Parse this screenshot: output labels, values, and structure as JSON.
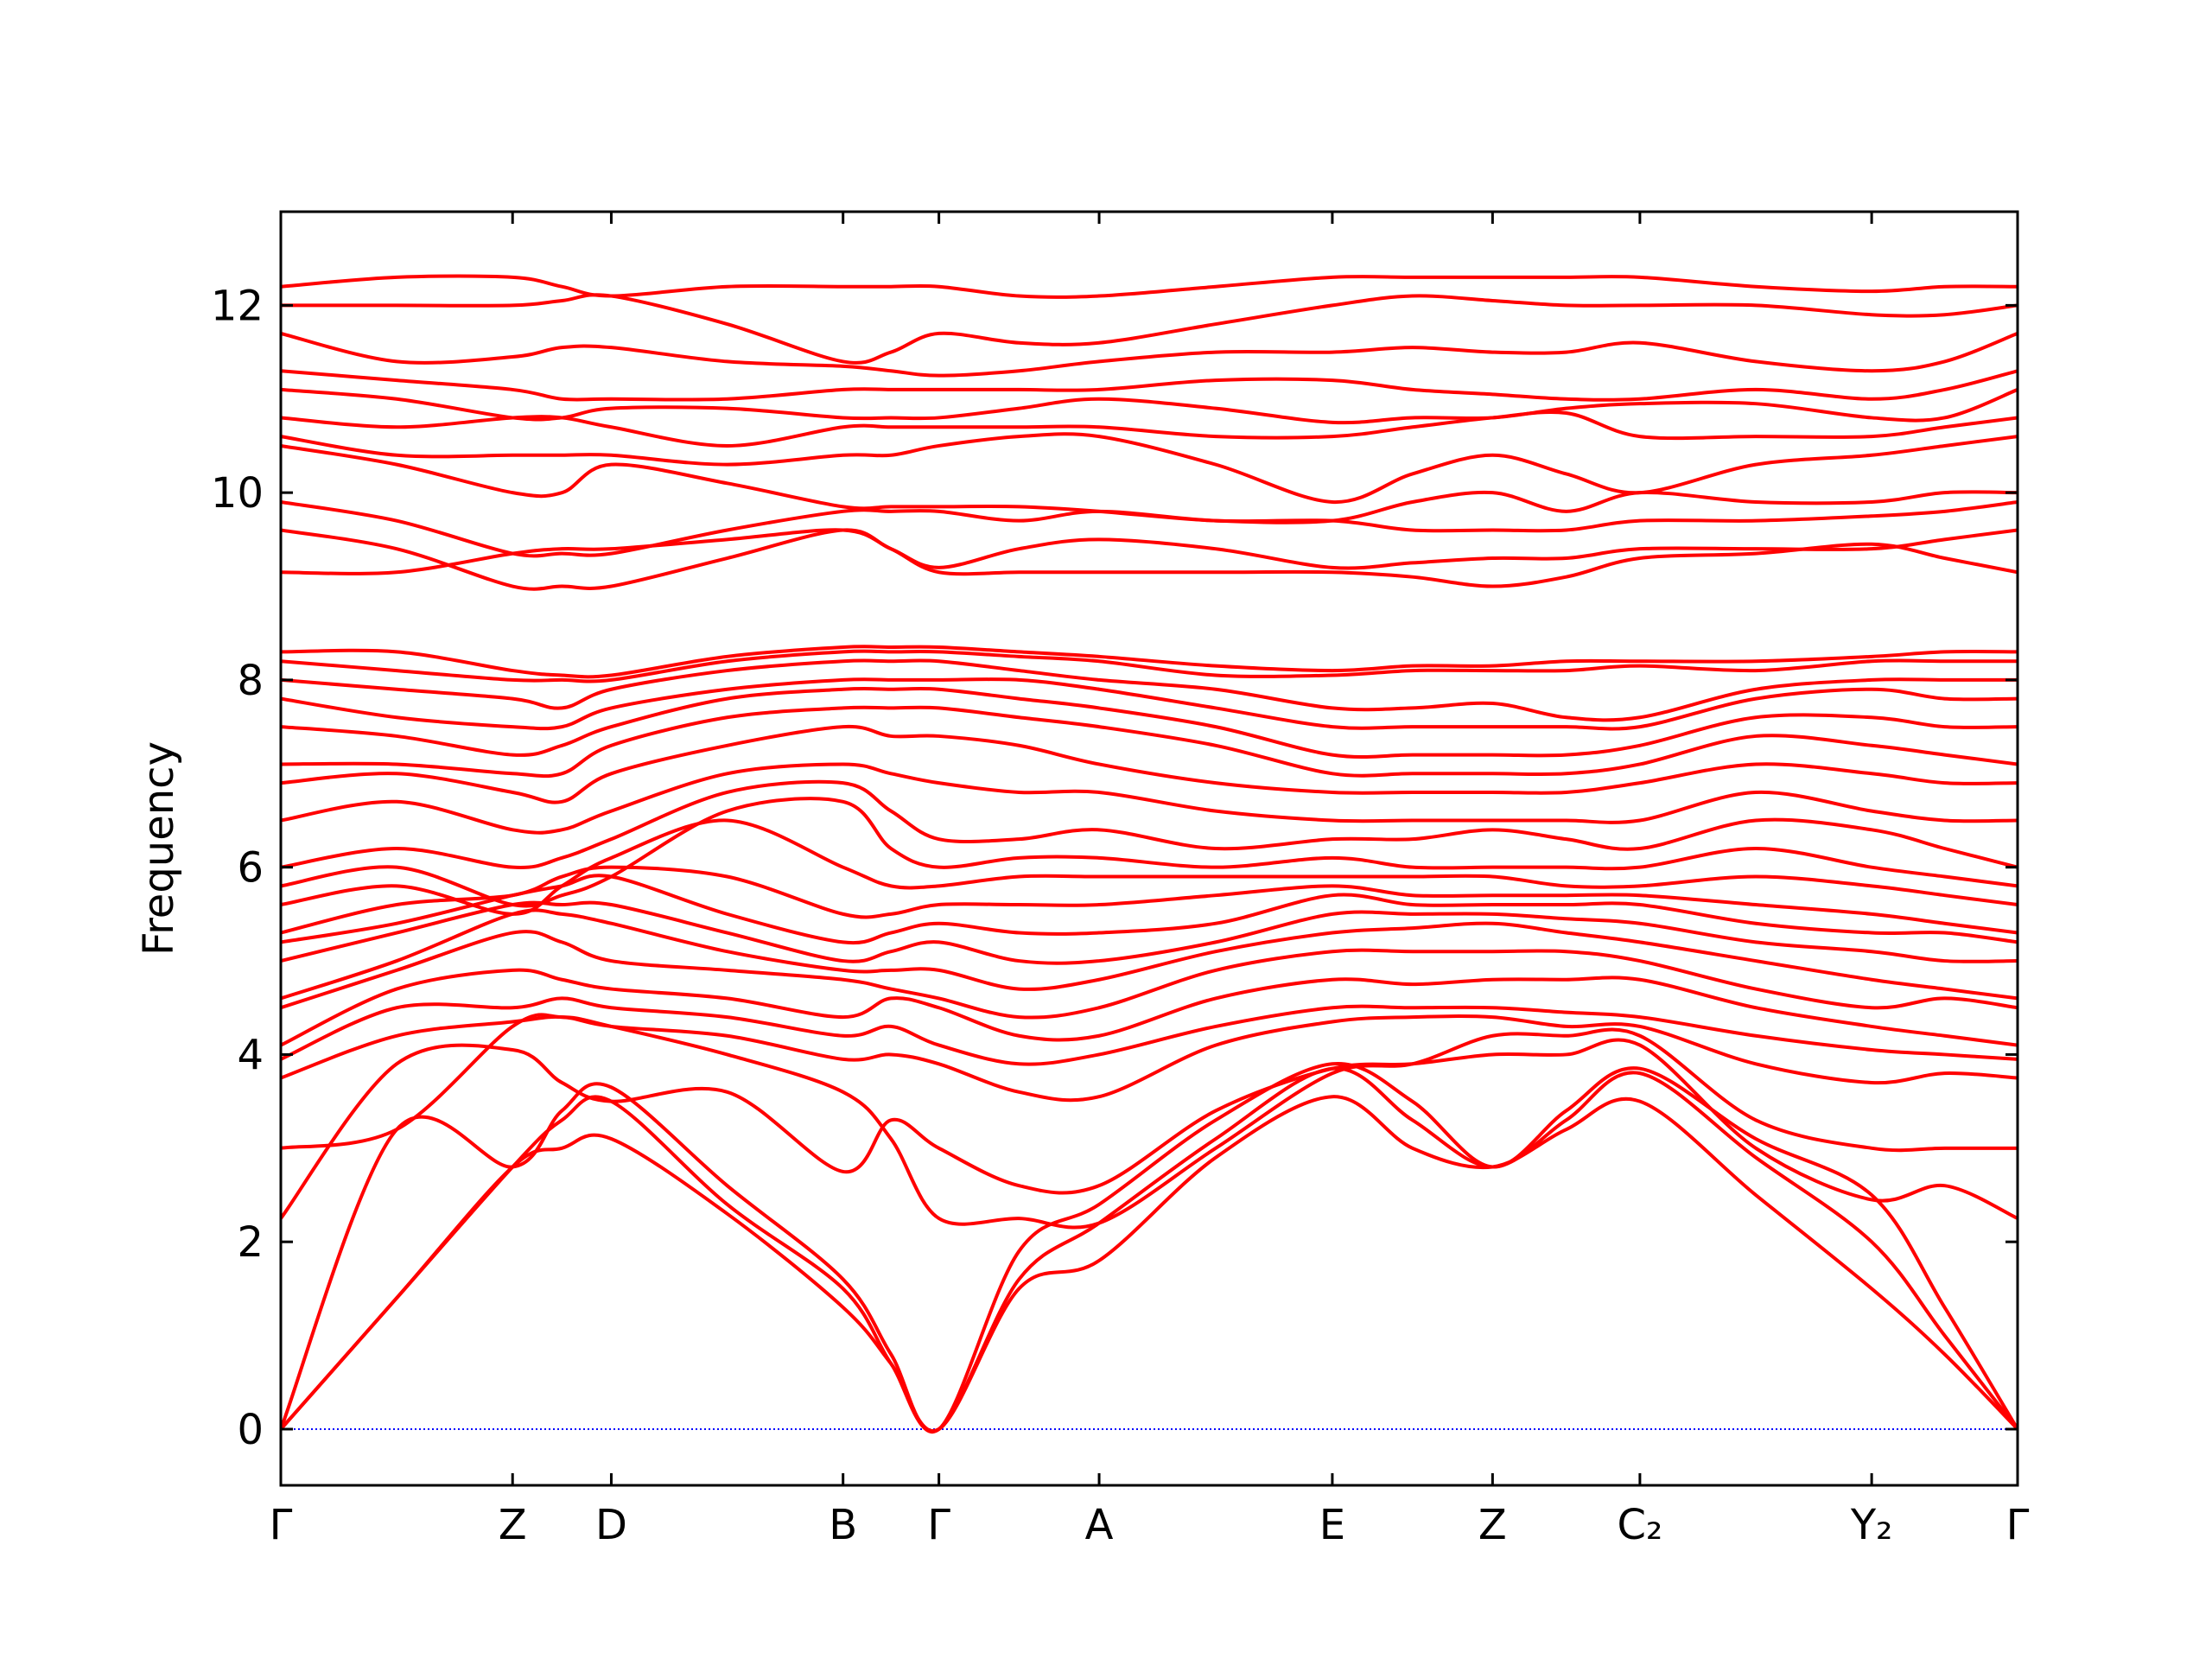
{
  "chart_data": {
    "type": "line",
    "ylabel": "Frequency",
    "color": "#ff0000",
    "xlim": [
      0,
      12.14
    ],
    "ylim": [
      -0.6,
      13.0
    ],
    "xticks": [
      {
        "value": 0,
        "label": "Γ"
      },
      {
        "value": 1.62,
        "label": "Z"
      },
      {
        "value": 2.31,
        "label": "D"
      },
      {
        "value": 3.93,
        "label": "B"
      },
      {
        "value": 4.6,
        "label": "Γ"
      },
      {
        "value": 5.72,
        "label": "A"
      },
      {
        "value": 7.35,
        "label": "E"
      },
      {
        "value": 8.47,
        "label": "Z"
      },
      {
        "value": 9.5,
        "label": "C₂"
      },
      {
        "value": 11.12,
        "label": "Y₂"
      },
      {
        "value": 12.14,
        "label": "Γ"
      }
    ],
    "yticks": [
      0,
      2,
      4,
      6,
      8,
      10,
      12
    ],
    "hline": {
      "value": 0,
      "color": "#0000ff"
    },
    "x": [
      0,
      0.81,
      1.62,
      1.965,
      2.31,
      3.12,
      3.93,
      4.265,
      4.6,
      5.16,
      5.72,
      6.535,
      7.35,
      7.91,
      8.47,
      8.985,
      9.5,
      10.31,
      11.12,
      11.63,
      12.14
    ],
    "series": [
      {
        "values": [
          0,
          1.4,
          2.8,
          3.0,
          3.1,
          2.3,
          1.3,
          0.7,
          0,
          1.5,
          1.8,
          2.9,
          3.55,
          3.0,
          2.8,
          3.2,
          3.5,
          2.5,
          1.5,
          0.8,
          0
        ]
      },
      {
        "values": [
          0,
          1.4,
          2.8,
          3.3,
          3.5,
          2.4,
          1.5,
          0.7,
          0,
          1.6,
          2.2,
          3.1,
          3.85,
          3.3,
          2.8,
          3.3,
          3.8,
          2.9,
          2.0,
          1.0,
          0
        ]
      },
      {
        "values": [
          0,
          3.2,
          2.8,
          3.4,
          3.65,
          2.6,
          1.6,
          0.8,
          0,
          1.9,
          2.4,
          3.3,
          3.9,
          3.5,
          2.8,
          3.4,
          3.85,
          3.1,
          2.5,
          1.3,
          0
        ]
      },
      {
        "values": [
          2.25,
          3.9,
          4.05,
          3.7,
          3.5,
          3.6,
          2.75,
          3.3,
          3.0,
          2.6,
          2.6,
          3.4,
          3.85,
          3.9,
          4.0,
          4.0,
          4.1,
          3.0,
          2.45,
          2.6,
          2.25
        ]
      },
      {
        "values": [
          3.0,
          3.2,
          4.3,
          4.4,
          4.3,
          4.0,
          3.6,
          3.1,
          2.25,
          2.25,
          2.2,
          3.0,
          3.8,
          3.9,
          4.2,
          4.2,
          4.2,
          3.3,
          3.0,
          3.0,
          3.0
        ]
      },
      {
        "values": [
          3.75,
          4.2,
          4.35,
          4.4,
          4.3,
          4.2,
          3.95,
          4.0,
          3.9,
          3.6,
          3.55,
          4.1,
          4.35,
          4.4,
          4.4,
          4.3,
          4.3,
          3.9,
          3.7,
          3.8,
          3.75
        ]
      },
      {
        "values": [
          3.95,
          4.5,
          4.5,
          4.6,
          4.5,
          4.4,
          4.2,
          4.3,
          4.1,
          3.9,
          4.0,
          4.3,
          4.5,
          4.5,
          4.5,
          4.45,
          4.4,
          4.2,
          4.05,
          4.0,
          3.95
        ]
      },
      {
        "values": [
          4.1,
          4.7,
          4.9,
          4.8,
          4.7,
          4.6,
          4.4,
          4.6,
          4.5,
          4.2,
          4.2,
          4.6,
          4.8,
          4.75,
          4.8,
          4.8,
          4.8,
          4.5,
          4.3,
          4.2,
          4.1
        ]
      },
      {
        "values": [
          4.5,
          4.9,
          5.3,
          5.2,
          5.0,
          4.9,
          4.8,
          4.7,
          4.6,
          4.4,
          4.5,
          4.9,
          5.1,
          5.1,
          5.1,
          5.1,
          5.0,
          4.7,
          4.5,
          4.6,
          4.5
        ]
      },
      {
        "values": [
          4.6,
          5.0,
          5.5,
          5.5,
          5.4,
          5.1,
          4.9,
          4.9,
          4.9,
          4.7,
          4.8,
          5.1,
          5.3,
          5.35,
          5.4,
          5.3,
          5.2,
          5.0,
          4.8,
          4.7,
          4.6
        ]
      },
      {
        "values": [
          5.0,
          5.3,
          5.6,
          5.6,
          5.6,
          5.3,
          5.0,
          5.1,
          5.2,
          5.0,
          5.0,
          5.2,
          5.5,
          5.5,
          5.5,
          5.45,
          5.4,
          5.2,
          5.1,
          5.0,
          5.0
        ]
      },
      {
        "values": [
          5.2,
          5.4,
          5.7,
          5.8,
          5.9,
          5.5,
          5.2,
          5.3,
          5.4,
          5.3,
          5.3,
          5.4,
          5.7,
          5.6,
          5.6,
          5.6,
          5.6,
          5.4,
          5.3,
          5.3,
          5.2
        ]
      },
      {
        "values": [
          5.3,
          5.6,
          5.7,
          5.9,
          6.0,
          5.9,
          5.5,
          5.5,
          5.6,
          5.6,
          5.6,
          5.7,
          5.8,
          5.7,
          5.7,
          5.7,
          5.7,
          5.6,
          5.5,
          5.4,
          5.3
        ]
      },
      {
        "values": [
          5.6,
          5.8,
          5.5,
          5.8,
          6.1,
          6.5,
          6.0,
          5.8,
          5.8,
          5.9,
          5.9,
          5.9,
          5.9,
          5.9,
          5.9,
          5.8,
          5.8,
          5.9,
          5.8,
          5.7,
          5.6
        ]
      },
      {
        "values": [
          5.8,
          6.0,
          5.6,
          5.7,
          5.9,
          6.6,
          6.7,
          6.2,
          6.0,
          6.1,
          6.1,
          6.0,
          6.1,
          6.0,
          6.0,
          6.0,
          6.0,
          6.2,
          6.0,
          5.9,
          5.8
        ]
      },
      {
        "values": [
          6.0,
          6.2,
          6.0,
          6.1,
          6.3,
          6.8,
          6.9,
          6.6,
          6.3,
          6.3,
          6.4,
          6.2,
          6.3,
          6.3,
          6.4,
          6.3,
          6.2,
          6.5,
          6.4,
          6.2,
          6.0
        ]
      },
      {
        "values": [
          6.5,
          6.7,
          6.4,
          6.4,
          6.6,
          7.0,
          7.1,
          7.0,
          6.9,
          6.8,
          6.8,
          6.6,
          6.5,
          6.5,
          6.5,
          6.5,
          6.5,
          6.8,
          6.6,
          6.5,
          6.5
        ]
      },
      {
        "values": [
          6.9,
          7.0,
          6.8,
          6.7,
          7.0,
          7.3,
          7.5,
          7.4,
          7.4,
          7.3,
          7.1,
          6.9,
          6.8,
          6.8,
          6.8,
          6.8,
          6.9,
          7.1,
          7.0,
          6.9,
          6.9
        ]
      },
      {
        "values": [
          7.1,
          7.1,
          7.0,
          7.0,
          7.3,
          7.6,
          7.7,
          7.7,
          7.7,
          7.6,
          7.5,
          7.3,
          7.0,
          7.0,
          7.0,
          7.0,
          7.1,
          7.4,
          7.3,
          7.2,
          7.1
        ]
      },
      {
        "values": [
          7.5,
          7.4,
          7.2,
          7.3,
          7.5,
          7.8,
          7.9,
          7.9,
          7.9,
          7.8,
          7.7,
          7.5,
          7.2,
          7.2,
          7.2,
          7.2,
          7.3,
          7.6,
          7.6,
          7.5,
          7.5
        ]
      },
      {
        "values": [
          7.8,
          7.6,
          7.5,
          7.5,
          7.7,
          7.9,
          8.0,
          8.0,
          8.0,
          8.0,
          7.9,
          7.7,
          7.5,
          7.5,
          7.5,
          7.5,
          7.5,
          7.8,
          7.9,
          7.8,
          7.8
        ]
      },
      {
        "values": [
          8.0,
          7.9,
          7.8,
          7.7,
          7.9,
          8.1,
          8.2,
          8.2,
          8.2,
          8.1,
          8.0,
          7.9,
          7.7,
          7.7,
          7.75,
          7.6,
          7.6,
          7.9,
          8.0,
          8.0,
          8.0
        ]
      },
      {
        "values": [
          8.2,
          8.1,
          8.0,
          8.0,
          8.0,
          8.2,
          8.3,
          8.3,
          8.3,
          8.25,
          8.2,
          8.05,
          8.05,
          8.1,
          8.1,
          8.1,
          8.15,
          8.1,
          8.2,
          8.2,
          8.2
        ]
      },
      {
        "values": [
          8.3,
          8.3,
          8.1,
          8.05,
          8.05,
          8.25,
          8.35,
          8.35,
          8.35,
          8.3,
          8.25,
          8.15,
          8.1,
          8.15,
          8.15,
          8.2,
          8.2,
          8.2,
          8.25,
          8.3,
          8.3
        ]
      },
      {
        "values": [
          9.15,
          9.15,
          9.35,
          9.4,
          9.4,
          9.5,
          9.6,
          9.4,
          9.15,
          9.15,
          9.15,
          9.15,
          9.15,
          9.1,
          9.0,
          9.1,
          9.3,
          9.35,
          9.45,
          9.3,
          9.15
        ]
      },
      {
        "values": [
          9.6,
          9.4,
          9.0,
          9.0,
          9.0,
          9.3,
          9.6,
          9.4,
          9.2,
          9.4,
          9.5,
          9.4,
          9.2,
          9.25,
          9.3,
          9.3,
          9.4,
          9.4,
          9.4,
          9.5,
          9.6
        ]
      },
      {
        "values": [
          9.9,
          9.7,
          9.35,
          9.35,
          9.35,
          9.6,
          9.8,
          9.8,
          9.8,
          9.7,
          9.8,
          9.7,
          9.7,
          9.6,
          9.6,
          9.6,
          9.7,
          9.7,
          9.75,
          9.8,
          9.9
        ]
      },
      {
        "values": [
          10.5,
          10.3,
          10.0,
          10.0,
          10.3,
          10.1,
          9.85,
          9.85,
          9.85,
          9.85,
          9.8,
          9.7,
          9.7,
          9.9,
          10.0,
          9.8,
          10.0,
          9.9,
          9.9,
          10.0,
          10.0
        ]
      },
      {
        "values": [
          10.6,
          10.4,
          10.4,
          10.4,
          10.4,
          10.3,
          10.4,
          10.4,
          10.5,
          10.6,
          10.6,
          10.3,
          9.9,
          10.2,
          10.4,
          10.2,
          10.0,
          10.3,
          10.4,
          10.5,
          10.6
        ]
      },
      {
        "values": [
          10.8,
          10.7,
          10.8,
          10.8,
          10.7,
          10.5,
          10.7,
          10.7,
          10.7,
          10.7,
          10.7,
          10.6,
          10.6,
          10.7,
          10.8,
          10.85,
          10.6,
          10.6,
          10.6,
          10.7,
          10.8
        ]
      },
      {
        "values": [
          11.1,
          11.0,
          10.8,
          10.8,
          10.9,
          10.9,
          10.8,
          10.8,
          10.8,
          10.9,
          11.0,
          10.9,
          10.75,
          10.8,
          10.8,
          10.9,
          10.95,
          10.95,
          10.8,
          10.8,
          11.1
        ]
      },
      {
        "values": [
          11.3,
          11.2,
          11.1,
          11.0,
          11.0,
          11.0,
          11.1,
          11.1,
          11.1,
          11.1,
          11.1,
          11.2,
          11.2,
          11.1,
          11.05,
          11.0,
          11.0,
          11.1,
          11.0,
          11.1,
          11.3
        ]
      },
      {
        "values": [
          11.7,
          11.4,
          11.45,
          11.55,
          11.55,
          11.4,
          11.35,
          11.3,
          11.25,
          11.3,
          11.4,
          11.5,
          11.5,
          11.55,
          11.5,
          11.5,
          11.6,
          11.4,
          11.3,
          11.4,
          11.7
        ]
      },
      {
        "values": [
          12.0,
          12.0,
          12.0,
          12.05,
          12.1,
          11.8,
          11.4,
          11.5,
          11.7,
          11.6,
          11.6,
          11.8,
          12.0,
          12.1,
          12.05,
          12.0,
          12.0,
          12.0,
          11.9,
          11.9,
          12.0
        ]
      },
      {
        "values": [
          12.2,
          12.3,
          12.3,
          12.2,
          12.1,
          12.2,
          12.2,
          12.2,
          12.2,
          12.1,
          12.1,
          12.2,
          12.3,
          12.3,
          12.3,
          12.3,
          12.3,
          12.2,
          12.15,
          12.2,
          12.2
        ]
      }
    ]
  }
}
